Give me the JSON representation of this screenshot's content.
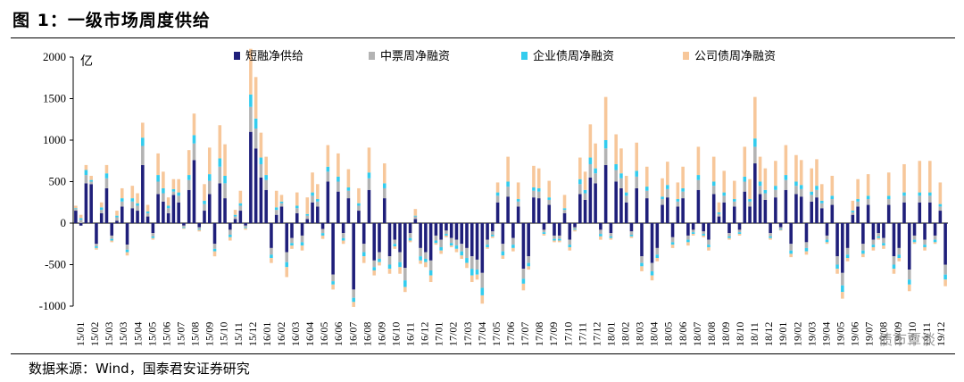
{
  "figure": {
    "title": "图 1：一级市场周度供给",
    "source": "数据来源：Wind，国泰君安证券研究",
    "watermark": "债市覃谈"
  },
  "colors": {
    "short_financing": "#1f1f7a",
    "mtn": "#b3b3b3",
    "enterprise_bond": "#33ccee",
    "corporate_bond": "#f7c79a"
  },
  "chart_data": {
    "type": "bar",
    "stacked": true,
    "unit": "亿",
    "ylim": [
      -1000,
      2000
    ],
    "yticks": [
      -1000,
      -500,
      0,
      500,
      1000,
      1500,
      2000
    ],
    "grid": false,
    "legend_position": "top",
    "tick_labels": [
      "15/01",
      "15/02",
      "15/03",
      "15/03",
      "15/04",
      "15/05",
      "15/06",
      "15/07",
      "15/08",
      "15/09",
      "15/10",
      "15/11",
      "15/12",
      "16/01",
      "16/02",
      "16/03",
      "16/04",
      "16/05",
      "16/06",
      "16/07",
      "16/08",
      "16/09",
      "16/10",
      "16/11",
      "16/12",
      "17/01",
      "17/02",
      "17/03",
      "17/04",
      "17/05",
      "17/06",
      "17/07",
      "17/08",
      "17/09",
      "17/10",
      "17/11",
      "17/12",
      "18/01",
      "18/02",
      "18/03",
      "18/04",
      "18/05",
      "18/06",
      "18/07",
      "18/08",
      "18/09",
      "18/10",
      "18/11",
      "18/12",
      "19/01",
      "19/02",
      "19/03",
      "19/04",
      "19/05",
      "19/06",
      "19/07",
      "19/08",
      "19/09",
      "19/10",
      "19/11",
      "19/12"
    ],
    "series": [
      {
        "name": "短融净供给",
        "values": [
          150,
          -30,
          480,
          470,
          -250,
          120,
          420,
          -150,
          30,
          200,
          -260,
          180,
          150,
          700,
          80,
          -120,
          350,
          260,
          120,
          340,
          250,
          -30,
          400,
          760,
          -50,
          150,
          350,
          -250,
          480,
          300,
          -80,
          50,
          150,
          -30,
          1100,
          900,
          550,
          400,
          -300,
          100,
          200,
          -350,
          -180,
          120,
          -150,
          50,
          250,
          200,
          -70,
          500,
          -620,
          380,
          -120,
          300,
          -800,
          150,
          -250,
          400,
          -450,
          -350,
          300,
          -400,
          -200,
          -350,
          -540,
          -120,
          50,
          -300,
          -350,
          -450,
          -150,
          -200,
          -90,
          -180,
          -200,
          -250,
          -300,
          -400,
          -440,
          -600,
          -200,
          -100,
          250,
          -250,
          320,
          -180,
          200,
          -550,
          -400,
          310,
          300,
          -80,
          220,
          -150,
          -150,
          120,
          -200,
          -50,
          350,
          280,
          550,
          480,
          -80,
          700,
          -120,
          500,
          420,
          250,
          -100,
          420,
          -400,
          300,
          -480,
          -300,
          220,
          310,
          -170,
          200,
          300,
          -150,
          -80,
          400,
          -100,
          -200,
          350,
          80,
          250,
          -120,
          200,
          -80,
          380,
          200,
          720,
          350,
          280,
          -120,
          310,
          -50,
          400,
          -250,
          350,
          320,
          -230,
          260,
          310,
          180,
          -150,
          220,
          -400,
          -600,
          -300,
          100,
          200,
          -250,
          220,
          -200,
          -120,
          -180,
          220,
          -400,
          -300,
          250,
          -560,
          -150,
          250,
          -200,
          250,
          -150,
          150,
          -500
        ]
      },
      {
        "name": "中票周净融资",
        "values": [
          20,
          40,
          100,
          30,
          -30,
          40,
          120,
          -40,
          40,
          60,
          -60,
          80,
          60,
          230,
          40,
          -40,
          150,
          100,
          60,
          40,
          80,
          -20,
          120,
          200,
          -20,
          80,
          160,
          -60,
          200,
          180,
          -60,
          30,
          60,
          -20,
          300,
          240,
          160,
          120,
          -80,
          60,
          40,
          -120,
          -60,
          60,
          -80,
          40,
          80,
          60,
          -50,
          120,
          -80,
          120,
          -60,
          90,
          -100,
          60,
          -100,
          140,
          -80,
          -80,
          120,
          -100,
          -50,
          -120,
          -150,
          -60,
          30,
          -100,
          -80,
          -120,
          -60,
          -90,
          -40,
          -60,
          -70,
          -90,
          -120,
          -150,
          -120,
          -180,
          -60,
          -40,
          80,
          -90,
          120,
          -80,
          60,
          -120,
          -80,
          80,
          80,
          -30,
          60,
          -40,
          -40,
          40,
          -60,
          -20,
          120,
          80,
          160,
          120,
          -50,
          200,
          -40,
          140,
          120,
          80,
          -40,
          140,
          -80,
          90,
          -100,
          -80,
          70,
          100,
          -60,
          60,
          80,
          -50,
          -30,
          120,
          -30,
          -60,
          100,
          30,
          80,
          -40,
          60,
          -30,
          120,
          60,
          200,
          100,
          80,
          -40,
          90,
          -20,
          120,
          -80,
          100,
          90,
          -70,
          80,
          90,
          60,
          -50,
          70,
          -100,
          -150,
          -80,
          30,
          60,
          -80,
          70,
          -60,
          -40,
          -60,
          70,
          -100,
          -80,
          80,
          -120,
          -50,
          80,
          -60,
          80,
          -50,
          50,
          -120
        ]
      },
      {
        "name": "企业债周净融资",
        "values": [
          10,
          20,
          60,
          20,
          -20,
          30,
          60,
          -20,
          20,
          40,
          -30,
          40,
          30,
          100,
          20,
          -20,
          80,
          60,
          30,
          30,
          40,
          -10,
          60,
          100,
          -10,
          40,
          80,
          -30,
          100,
          90,
          -30,
          20,
          30,
          -10,
          150,
          120,
          80,
          60,
          -40,
          30,
          20,
          -60,
          -30,
          30,
          -40,
          20,
          40,
          30,
          -30,
          60,
          -40,
          60,
          -30,
          40,
          -50,
          30,
          -50,
          70,
          -40,
          -40,
          60,
          -50,
          -30,
          -60,
          -80,
          -30,
          10,
          -50,
          -40,
          -60,
          -30,
          -40,
          -20,
          -30,
          -40,
          -50,
          -60,
          -80,
          -60,
          -90,
          -30,
          -20,
          40,
          -50,
          60,
          -40,
          30,
          -60,
          -40,
          40,
          40,
          -20,
          30,
          -20,
          -20,
          20,
          -30,
          -10,
          60,
          40,
          80,
          60,
          -30,
          100,
          -20,
          70,
          60,
          40,
          -20,
          70,
          -40,
          50,
          -50,
          -40,
          30,
          50,
          -30,
          30,
          40,
          -30,
          -20,
          60,
          -20,
          -30,
          50,
          20,
          40,
          -20,
          30,
          -20,
          60,
          30,
          100,
          50,
          40,
          -20,
          50,
          -10,
          60,
          -40,
          50,
          50,
          -40,
          40,
          50,
          30,
          -30,
          40,
          -50,
          -80,
          -40,
          20,
          30,
          -40,
          40,
          -30,
          -20,
          -30,
          40,
          -50,
          -40,
          40,
          -60,
          -30,
          40,
          -30,
          40,
          -30,
          30,
          -60
        ]
      },
      {
        "name": "公司债周净融资",
        "values": [
          30,
          40,
          60,
          50,
          -20,
          60,
          100,
          -20,
          60,
          120,
          -40,
          150,
          120,
          180,
          80,
          -20,
          260,
          200,
          100,
          120,
          160,
          -10,
          300,
          260,
          -20,
          200,
          320,
          -60,
          400,
          380,
          -40,
          60,
          150,
          -20,
          550,
          500,
          300,
          220,
          -60,
          200,
          80,
          -120,
          -40,
          160,
          -60,
          200,
          240,
          180,
          -40,
          260,
          -60,
          280,
          -40,
          220,
          -60,
          180,
          -80,
          300,
          -60,
          -40,
          240,
          -60,
          -30,
          -80,
          -60,
          -20,
          80,
          -40,
          -60,
          -80,
          -20,
          -40,
          -20,
          -20,
          -40,
          -40,
          -60,
          -80,
          -60,
          -100,
          -20,
          -20,
          120,
          -40,
          300,
          -40,
          200,
          -80,
          -40,
          260,
          240,
          -20,
          200,
          -20,
          -20,
          160,
          -40,
          -20,
          260,
          220,
          400,
          300,
          -40,
          520,
          -20,
          360,
          300,
          200,
          -20,
          340,
          -60,
          240,
          -60,
          -40,
          220,
          280,
          -40,
          200,
          260,
          -40,
          -20,
          340,
          -20,
          -40,
          300,
          120,
          260,
          -20,
          220,
          -20,
          360,
          240,
          500,
          300,
          260,
          -20,
          300,
          -10,
          360,
          -40,
          320,
          300,
          -40,
          280,
          320,
          200,
          -20,
          240,
          -60,
          -80,
          -40,
          120,
          240,
          -40,
          260,
          -40,
          -20,
          -40,
          280,
          -60,
          -40,
          340,
          -80,
          -20,
          380,
          -40,
          380,
          -20,
          260,
          -80
        ]
      }
    ]
  }
}
